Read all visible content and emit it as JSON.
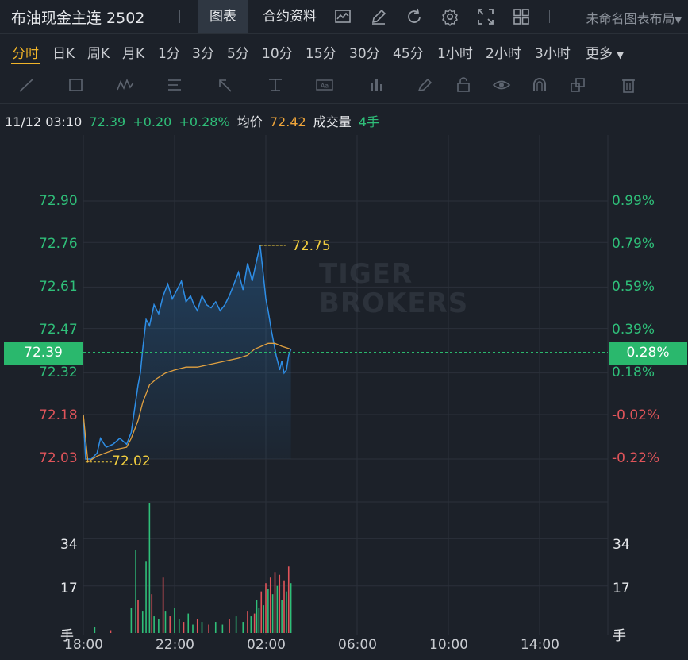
{
  "header": {
    "symbol_title": "布油现金主连 2502",
    "tabs": [
      {
        "label": "图表",
        "active": true
      },
      {
        "label": "合约资料",
        "active": false
      }
    ],
    "icons": [
      "indicator-icon",
      "draw-icon",
      "refresh-icon",
      "settings-icon",
      "fullscreen-icon",
      "grid-layout-icon"
    ],
    "layout_select": "未命名图表布局"
  },
  "intervals": {
    "items": [
      "分时",
      "日K",
      "周K",
      "月K",
      "1分",
      "3分",
      "5分",
      "10分",
      "15分",
      "30分",
      "45分",
      "1小时",
      "2小时",
      "3小时",
      "更多"
    ],
    "active": "分时"
  },
  "drawing_tools": [
    "line-tool-icon",
    "rect-tool-icon",
    "pattern-tool-icon",
    "fib-tool-icon",
    "arrow-tool-icon",
    "measure-tool-icon",
    "text-tool-icon",
    "bar-pattern-icon",
    "brush-icon",
    "lock-icon",
    "eye-icon",
    "magnet-icon",
    "layers-icon",
    "trash-icon"
  ],
  "info": {
    "datetime": "11/12 03:10",
    "price": "72.39",
    "change": "+0.20",
    "change_pct": "+0.28%",
    "avg_label": "均价",
    "avg_value": "72.42",
    "volume_label": "成交量",
    "volume_value": "4手"
  },
  "watermark": {
    "line1": "TIGER",
    "line2": "BROKERS"
  },
  "colors": {
    "up": "#2fbf79",
    "down": "#e0545a",
    "price_line": "#2e8ee6",
    "avg_line": "#e0a040",
    "accent": "#f0b429"
  },
  "chart_data": {
    "type": "line",
    "title": "",
    "y_axis_left": [
      "72.90",
      "72.76",
      "72.61",
      "72.47",
      "72.32",
      "72.18",
      "72.03"
    ],
    "y_axis_right": [
      "0.99%",
      "0.79%",
      "0.59%",
      "0.39%",
      "0.18%",
      "-0.02%",
      "-0.22%"
    ],
    "current_price_label": "72.39",
    "current_pct_label": "0.28%",
    "x_labels": [
      "18:00",
      "22:00",
      "02:00",
      "06:00",
      "10:00",
      "14:00"
    ],
    "ylim": [
      71.9,
      73.04
    ],
    "high_label": "72.75",
    "low_label": "72.02",
    "series": [
      {
        "name": "price",
        "x": [
          0,
          0.1,
          0.35,
          0.6,
          0.75,
          1.0,
          1.3,
          1.6,
          1.9,
          2.1,
          2.25,
          2.4,
          2.5,
          2.6,
          2.75,
          2.9,
          3.1,
          3.3,
          3.5,
          3.7,
          3.9,
          4.1,
          4.3,
          4.5,
          4.7,
          4.85,
          5.0,
          5.2,
          5.4,
          5.6,
          5.8,
          6.0,
          6.2,
          6.4,
          6.6,
          6.8,
          7.0,
          7.2,
          7.4,
          7.6,
          7.75,
          7.85,
          8.0,
          8.1,
          8.25,
          8.35,
          8.45,
          8.55,
          8.6,
          8.7,
          8.8,
          8.9,
          9.0,
          9.1
        ],
        "y": [
          72.18,
          72.03,
          72.03,
          72.05,
          72.1,
          72.07,
          72.08,
          72.1,
          72.08,
          72.12,
          72.2,
          72.28,
          72.32,
          72.4,
          72.5,
          72.48,
          72.55,
          72.52,
          72.58,
          72.62,
          72.57,
          72.6,
          72.63,
          72.56,
          72.58,
          72.55,
          72.53,
          72.58,
          72.55,
          72.54,
          72.56,
          72.53,
          72.55,
          72.58,
          72.62,
          72.66,
          72.6,
          72.69,
          72.63,
          72.7,
          72.75,
          72.68,
          72.57,
          72.53,
          72.46,
          72.42,
          72.38,
          72.35,
          72.33,
          72.36,
          72.32,
          72.33,
          72.38,
          72.4
        ]
      },
      {
        "name": "avg",
        "x": [
          0,
          0.2,
          0.6,
          1.3,
          1.9,
          2.1,
          2.4,
          2.6,
          2.9,
          3.2,
          3.6,
          4.0,
          4.5,
          5.0,
          5.6,
          6.2,
          6.8,
          7.2,
          7.5,
          7.8,
          8.1,
          8.4,
          8.7,
          9.1
        ],
        "y": [
          72.18,
          72.02,
          72.04,
          72.06,
          72.07,
          72.1,
          72.16,
          72.22,
          72.28,
          72.3,
          72.32,
          72.33,
          72.34,
          72.34,
          72.35,
          72.36,
          72.37,
          72.38,
          72.4,
          72.41,
          72.42,
          72.42,
          72.41,
          72.4
        ]
      }
    ],
    "volume": {
      "y_axis": [
        "34",
        "17",
        "手"
      ],
      "ylim": [
        0,
        45
      ],
      "bars": [
        {
          "x": 0.5,
          "v": 2,
          "up": true
        },
        {
          "x": 1.2,
          "v": 1,
          "up": false
        },
        {
          "x": 2.1,
          "v": 9,
          "up": true
        },
        {
          "x": 2.3,
          "v": 30,
          "up": true
        },
        {
          "x": 2.4,
          "v": 12,
          "up": false
        },
        {
          "x": 2.6,
          "v": 8,
          "up": true
        },
        {
          "x": 2.75,
          "v": 26,
          "up": true
        },
        {
          "x": 2.9,
          "v": 47,
          "up": true
        },
        {
          "x": 3.0,
          "v": 14,
          "up": false
        },
        {
          "x": 3.1,
          "v": 6,
          "up": true
        },
        {
          "x": 3.3,
          "v": 5,
          "up": true
        },
        {
          "x": 3.5,
          "v": 20,
          "up": false
        },
        {
          "x": 3.6,
          "v": 8,
          "up": true
        },
        {
          "x": 3.8,
          "v": 6,
          "up": false
        },
        {
          "x": 4.0,
          "v": 9,
          "up": true
        },
        {
          "x": 4.2,
          "v": 5,
          "up": true
        },
        {
          "x": 4.4,
          "v": 4,
          "up": false
        },
        {
          "x": 4.6,
          "v": 7,
          "up": true
        },
        {
          "x": 4.8,
          "v": 3,
          "up": true
        },
        {
          "x": 5.0,
          "v": 5,
          "up": false
        },
        {
          "x": 5.2,
          "v": 4,
          "up": true
        },
        {
          "x": 5.5,
          "v": 3,
          "up": false
        },
        {
          "x": 5.8,
          "v": 4,
          "up": true
        },
        {
          "x": 6.1,
          "v": 3,
          "up": true
        },
        {
          "x": 6.4,
          "v": 5,
          "up": false
        },
        {
          "x": 6.7,
          "v": 6,
          "up": true
        },
        {
          "x": 7.0,
          "v": 4,
          "up": true
        },
        {
          "x": 7.2,
          "v": 8,
          "up": false
        },
        {
          "x": 7.35,
          "v": 6,
          "up": true
        },
        {
          "x": 7.5,
          "v": 7,
          "up": false
        },
        {
          "x": 7.6,
          "v": 12,
          "up": true
        },
        {
          "x": 7.7,
          "v": 9,
          "up": true
        },
        {
          "x": 7.8,
          "v": 15,
          "up": false
        },
        {
          "x": 7.9,
          "v": 10,
          "up": true
        },
        {
          "x": 8.0,
          "v": 18,
          "up": false
        },
        {
          "x": 8.1,
          "v": 16,
          "up": true
        },
        {
          "x": 8.2,
          "v": 20,
          "up": false
        },
        {
          "x": 8.3,
          "v": 14,
          "up": true
        },
        {
          "x": 8.4,
          "v": 22,
          "up": false
        },
        {
          "x": 8.5,
          "v": 17,
          "up": true
        },
        {
          "x": 8.6,
          "v": 21,
          "up": false
        },
        {
          "x": 8.7,
          "v": 12,
          "up": true
        },
        {
          "x": 8.8,
          "v": 19,
          "up": false
        },
        {
          "x": 8.9,
          "v": 15,
          "up": true
        },
        {
          "x": 9.0,
          "v": 24,
          "up": false
        },
        {
          "x": 9.1,
          "v": 18,
          "up": true
        }
      ]
    }
  }
}
